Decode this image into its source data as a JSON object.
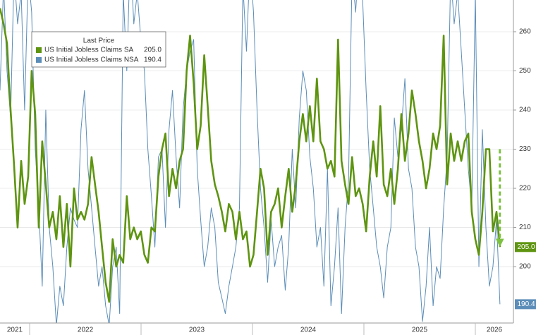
{
  "chart_data": {
    "type": "line",
    "legend_title": "Last Price",
    "xlim": [
      2021.734,
      2026.342
    ],
    "ylim": [
      185.6,
      268.1
    ],
    "yticks": [
      200,
      210,
      220,
      230,
      240,
      250,
      260
    ],
    "xticks": [
      {
        "value": 2021,
        "label": "2021"
      },
      {
        "value": 2022,
        "label": "2022"
      },
      {
        "value": 2023,
        "label": "2023"
      },
      {
        "value": 2024,
        "label": "2024"
      },
      {
        "value": 2025,
        "label": "2025"
      },
      {
        "value": 2026,
        "label": "2026"
      }
    ],
    "grid": true,
    "x": [
      2021.734,
      2021.766,
      2021.797,
      2021.829,
      2021.86,
      2021.892,
      2021.924,
      2021.955,
      2021.987,
      2022.018,
      2022.05,
      2022.082,
      2022.113,
      2022.145,
      2022.176,
      2022.208,
      2022.24,
      2022.271,
      2022.303,
      2022.334,
      2022.366,
      2022.398,
      2022.429,
      2022.461,
      2022.492,
      2022.524,
      2022.556,
      2022.587,
      2022.619,
      2022.65,
      2022.682,
      2022.714,
      2022.745,
      2022.777,
      2022.808,
      2022.84,
      2022.872,
      2022.903,
      2022.935,
      2022.966,
      2022.998,
      2023.03,
      2023.061,
      2023.093,
      2023.124,
      2023.156,
      2023.188,
      2023.219,
      2023.251,
      2023.282,
      2023.314,
      2023.346,
      2023.377,
      2023.409,
      2023.44,
      2023.472,
      2023.504,
      2023.535,
      2023.567,
      2023.598,
      2023.63,
      2023.662,
      2023.693,
      2023.725,
      2023.756,
      2023.788,
      2023.82,
      2023.851,
      2023.883,
      2023.914,
      2023.946,
      2023.978,
      2024.009,
      2024.041,
      2024.072,
      2024.104,
      2024.136,
      2024.167,
      2024.199,
      2024.23,
      2024.262,
      2024.294,
      2024.325,
      2024.357,
      2024.388,
      2024.42,
      2024.452,
      2024.483,
      2024.515,
      2024.546,
      2024.578,
      2024.61,
      2024.641,
      2024.673,
      2024.704,
      2024.736,
      2024.768,
      2024.799,
      2024.831,
      2024.862,
      2024.894,
      2024.926,
      2024.957,
      2024.989,
      2025.02,
      2025.052,
      2025.084,
      2025.115,
      2025.147,
      2025.178,
      2025.21,
      2025.242,
      2025.273,
      2025.305,
      2025.336,
      2025.368,
      2025.4,
      2025.431,
      2025.463,
      2025.494,
      2025.526,
      2025.558,
      2025.589,
      2025.621,
      2025.652,
      2025.684,
      2025.716,
      2025.747,
      2025.779,
      2025.81,
      2025.842,
      2025.874,
      2025.905,
      2025.937,
      2025.968,
      2026.0,
      2026.032,
      2026.063,
      2026.095,
      2026.126,
      2026.158,
      2026.19,
      2026.221
    ],
    "series": [
      {
        "name": "US Initial Jobless Claims NSA",
        "color": "#5b8db8",
        "last_label": "190.4",
        "values": [
          245,
          272,
          250,
          238,
          275,
          262,
          270,
          240,
          275,
          265,
          230,
          215,
          195,
          240,
          210,
          200,
          185,
          195,
          190,
          205,
          215,
          212,
          210,
          235,
          245,
          225,
          215,
          205,
          195,
          200,
          190,
          185,
          200,
          205,
          188,
          270,
          250,
          280,
          262,
          270,
          258,
          250,
          230,
          218,
          205,
          228,
          230,
          210,
          235,
          245,
          228,
          215,
          240,
          250,
          255,
          258,
          225,
          212,
          200,
          205,
          215,
          210,
          196,
          192,
          188,
          195,
          200,
          205,
          215,
          272,
          255,
          278,
          265,
          240,
          220,
          210,
          196,
          212,
          200,
          205,
          208,
          194,
          205,
          230,
          215,
          238,
          250,
          245,
          228,
          220,
          205,
          210,
          195,
          225,
          190,
          200,
          215,
          188,
          210,
          222,
          275,
          265,
          280,
          268,
          245,
          225,
          215,
          205,
          200,
          192,
          205,
          210,
          238,
          228,
          235,
          248,
          225,
          220,
          205,
          200,
          186,
          195,
          210,
          190,
          200,
          197,
          215,
          228,
          275,
          262,
          270,
          255,
          240,
          225,
          215,
          270,
          200,
          235,
          210,
          195,
          200,
          212,
          190.4
        ]
      },
      {
        "name": "US Initial Jobless Claims SA",
        "color": "#5e9410",
        "last_label": "205.0",
        "values": [
          266,
          262,
          257,
          240,
          226,
          210,
          227,
          216,
          223,
          250,
          239,
          210,
          232,
          221,
          210,
          214,
          207,
          218,
          205,
          216,
          200,
          220,
          212,
          214,
          212,
          216,
          228,
          221,
          214,
          205,
          196,
          191,
          207,
          200,
          203,
          201,
          218,
          207,
          210,
          207,
          209,
          203,
          201,
          210,
          209,
          223,
          230,
          234,
          218,
          225,
          220,
          227,
          230,
          250,
          259,
          247,
          230,
          236,
          254,
          241,
          227,
          221,
          218,
          214,
          209,
          216,
          214,
          207,
          214,
          207,
          209,
          200,
          203,
          214,
          225,
          220,
          203,
          214,
          216,
          220,
          210,
          218,
          225,
          214,
          221,
          232,
          239,
          232,
          241,
          232,
          248,
          232,
          230,
          225,
          227,
          223,
          258,
          227,
          221,
          216,
          228,
          218,
          220,
          216,
          209,
          223,
          232,
          223,
          241,
          221,
          218,
          225,
          216,
          225,
          239,
          227,
          234,
          245,
          239,
          232,
          227,
          220,
          225,
          234,
          230,
          236,
          259,
          221,
          234,
          227,
          232,
          227,
          232,
          234,
          214,
          207,
          203,
          214,
          230,
          230,
          209,
          214,
          205
        ]
      }
    ],
    "annotations": [
      {
        "type": "arrow",
        "color": "#7dc142",
        "x": 2026.22,
        "y_start": 230,
        "y_end": 205
      }
    ]
  }
}
